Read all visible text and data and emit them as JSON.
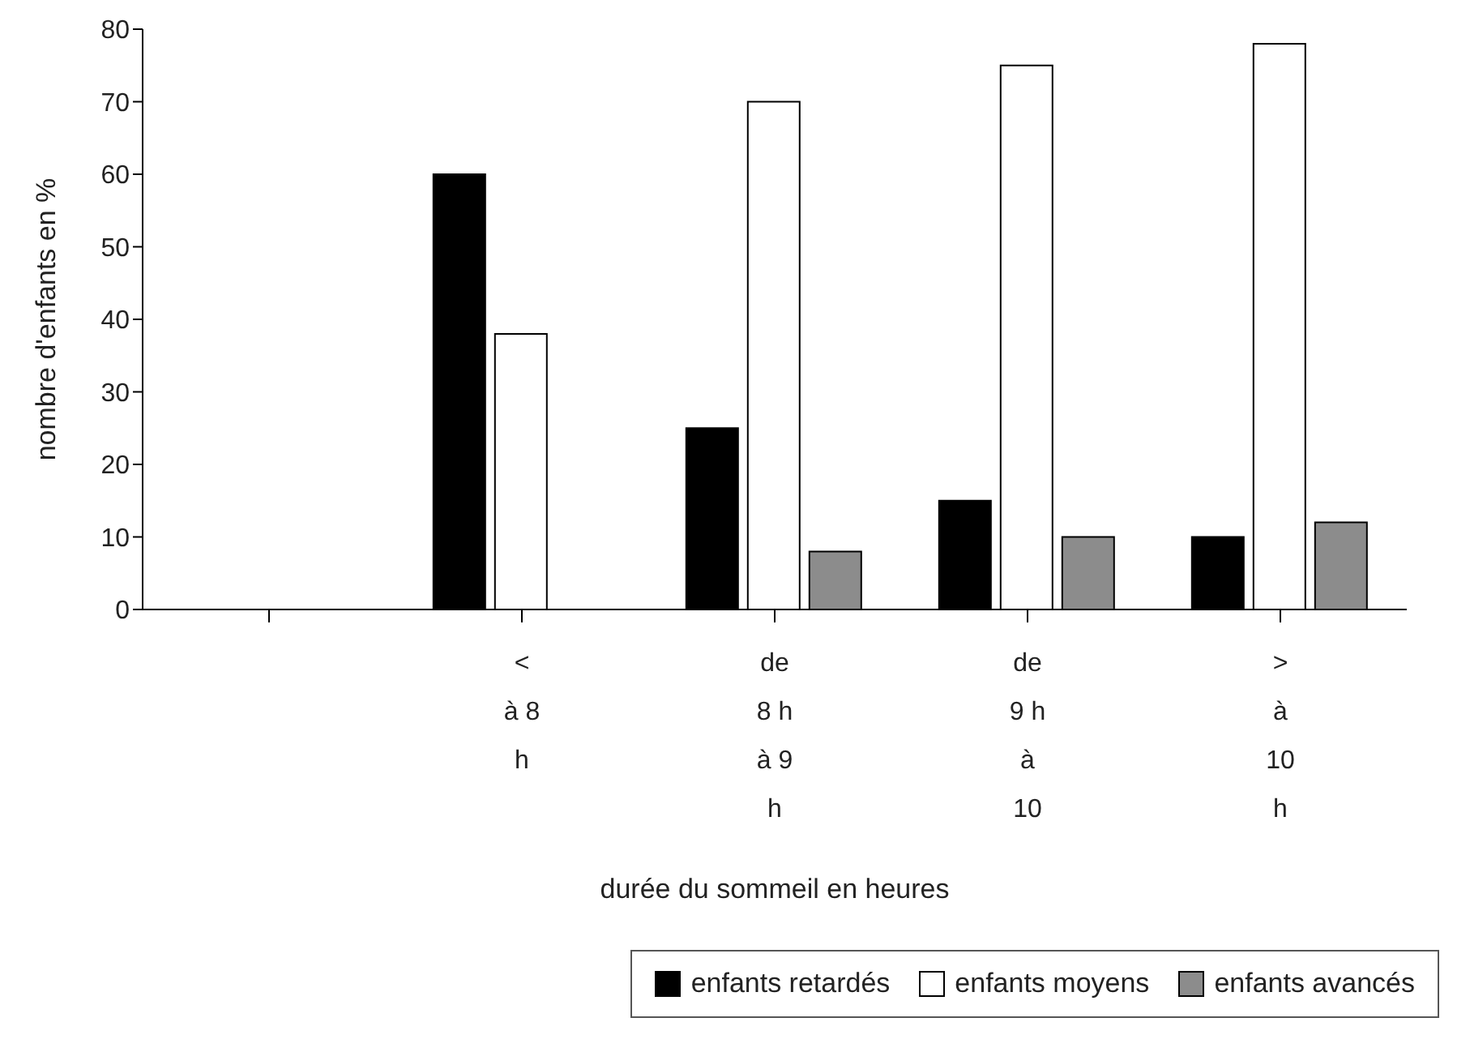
{
  "chart_data": {
    "type": "bar",
    "xlabel": "durée du sommeil en heures",
    "ylabel": "nombre d'enfants en %",
    "categories": [
      null,
      "<\nà 8\nh",
      "de\n8 h\nà 9\nh",
      "de\n9 h\nà\n10",
      ">\nà\n10\nh"
    ],
    "series": [
      {
        "name": "enfants retardés",
        "color": "#000000",
        "values": [
          null,
          60,
          25,
          15,
          10
        ]
      },
      {
        "name": "enfants moyens",
        "color": "#ffffff",
        "values": [
          null,
          38,
          70,
          75,
          78
        ]
      },
      {
        "name": "enfants avancés",
        "color": "#8c8c8c",
        "values": [
          null,
          null,
          8,
          10,
          12
        ]
      }
    ],
    "ylim": [
      0,
      80
    ],
    "yticks": [
      0,
      10,
      20,
      30,
      40,
      50,
      60,
      70,
      80
    ],
    "grid": false,
    "legend": "bottom"
  }
}
